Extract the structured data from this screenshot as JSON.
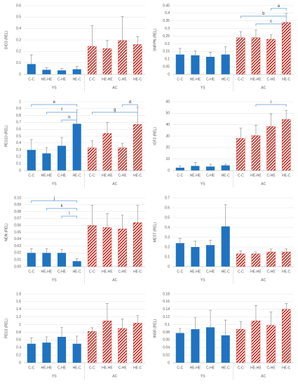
{
  "chart_data": [
    {
      "type": "bar",
      "ylabel": "DIO3 (REL)",
      "ylim": [
        0,
        0.6
      ],
      "yticks": [
        0,
        0.1,
        0.2,
        0.3,
        0.4,
        0.5,
        0.6
      ],
      "grid": true,
      "groups": [
        {
          "label": "YS",
          "color": "#1f73c0",
          "pattern": "solid",
          "categories": [
            "C-C",
            "HE-HE",
            "C-HE",
            "HE-C"
          ],
          "values": [
            0.09,
            0.04,
            0.035,
            0.045
          ],
          "errors": [
            0.08,
            0.02,
            0.015,
            0.025
          ]
        },
        {
          "label": "AC",
          "color": "#c8281e",
          "pattern": "hatch",
          "categories": [
            "C-C",
            "HE-HE",
            "C-HE",
            "HE-C"
          ],
          "values": [
            0.245,
            0.225,
            0.295,
            0.26
          ],
          "errors": [
            0.18,
            0.07,
            0.21,
            0.07
          ]
        }
      ],
      "annotations": []
    },
    {
      "type": "bar",
      "ylabel": "SNRPN (REL)",
      "ylim": [
        0,
        0.45
      ],
      "yticks": [
        0,
        0.05,
        0.1,
        0.15,
        0.2,
        0.25,
        0.3,
        0.35,
        0.4,
        0.45
      ],
      "grid": true,
      "groups": [
        {
          "label": "YS",
          "color": "#1f73c0",
          "pattern": "solid",
          "categories": [
            "C-C",
            "HE-HE",
            "C-HE",
            "HE-C"
          ],
          "values": [
            0.13,
            0.125,
            0.115,
            0.13
          ],
          "errors": [
            0.04,
            0.03,
            0.03,
            0.05
          ]
        },
        {
          "label": "AC",
          "color": "#c8281e",
          "pattern": "hatch",
          "categories": [
            "C-C",
            "HE-HE",
            "C-HE",
            "HE-C"
          ],
          "values": [
            0.24,
            0.24,
            0.23,
            0.34
          ],
          "errors": [
            0.04,
            0.05,
            0.03,
            0.06
          ]
        }
      ],
      "annotations": [
        {
          "label": "a",
          "from": 6,
          "to": 7
        },
        {
          "label": "b",
          "from": 4,
          "to": 7
        },
        {
          "label": "c",
          "from": 5,
          "to": 7
        }
      ]
    },
    {
      "type": "bar",
      "ylabel": "PEG10 (REL)",
      "ylim": [
        0,
        1
      ],
      "yticks": [
        0,
        0.1,
        0.2,
        0.3,
        0.4,
        0.5,
        0.6,
        0.7,
        0.8,
        0.9,
        1
      ],
      "grid": true,
      "groups": [
        {
          "label": "YS",
          "color": "#1f73c0",
          "pattern": "solid",
          "categories": [
            "C-C",
            "HE-HE",
            "C-HE",
            "HE-C"
          ],
          "values": [
            0.3,
            0.25,
            0.36,
            0.68
          ],
          "errors": [
            0.15,
            0.08,
            0.12,
            0.2
          ]
        },
        {
          "label": "AC",
          "color": "#c8281e",
          "pattern": "hatch",
          "categories": [
            "C-C",
            "HE-HE",
            "C-HE",
            "HE-C"
          ],
          "values": [
            0.33,
            0.54,
            0.33,
            0.67
          ],
          "errors": [
            0.1,
            0.16,
            0.06,
            0.25
          ]
        }
      ],
      "annotations": [
        {
          "label": "e",
          "from": 0,
          "to": 3
        },
        {
          "label": "f",
          "from": 1,
          "to": 3
        },
        {
          "label": "h",
          "from": 2,
          "to": 3
        },
        {
          "label": "d",
          "from": 6,
          "to": 7
        },
        {
          "label": "g",
          "from": 4,
          "to": 7
        }
      ]
    },
    {
      "type": "bar",
      "ylabel": "IGF2 (REL)",
      "ylim": [
        0,
        60
      ],
      "yticks": [
        0,
        10,
        20,
        30,
        40,
        50,
        60
      ],
      "grid": true,
      "groups": [
        {
          "label": "YS",
          "color": "#1f73c0",
          "pattern": "solid",
          "categories": [
            "C-C",
            "HE-HE",
            "C-HE",
            "HE-C"
          ],
          "values": [
            2.5,
            4,
            3.5,
            4.5
          ],
          "errors": [
            1.5,
            3,
            2,
            1
          ]
        },
        {
          "label": "AC",
          "color": "#c8281e",
          "pattern": "hatch",
          "categories": [
            "C-C",
            "HE-HE",
            "C-HE",
            "HE-C"
          ],
          "values": [
            28,
            30.5,
            38.5,
            44.5
          ],
          "errors": [
            9,
            9,
            11,
            8
          ]
        }
      ],
      "annotations": [
        {
          "label": "i",
          "from": 5,
          "to": 7
        }
      ]
    },
    {
      "type": "bar",
      "ylabel": "NDN (REL)",
      "ylim": [
        0,
        0.1
      ],
      "yticks": [
        {
          "value": 0,
          "label": "0.00"
        },
        {
          "value": 0.01,
          "label": "0.01"
        },
        {
          "value": 0.02,
          "label": "0.02"
        },
        {
          "value": 0.03,
          "label": "0.03"
        },
        {
          "value": 0.04,
          "label": "0.04"
        },
        {
          "value": 0.05,
          "label": "0.05"
        },
        {
          "value": 0.06,
          "label": "0.06"
        },
        {
          "value": 0.07,
          "label": "0.07"
        },
        {
          "value": 0.08,
          "label": "0.08"
        },
        {
          "value": 0.09,
          "label": "0.09"
        },
        {
          "value": 0.1,
          "label": "0.10"
        }
      ],
      "grid": true,
      "groups": [
        {
          "label": "YS",
          "color": "#1f73c0",
          "pattern": "solid",
          "categories": [
            "C-C",
            "HE-HE",
            "C-HE",
            "HE-C"
          ],
          "values": [
            0.02,
            0.02,
            0.02,
            0.008
          ],
          "errors": [
            0.006,
            0.006,
            0.005,
            0.004
          ]
        },
        {
          "label": "AC",
          "color": "#c8281e",
          "pattern": "hatch",
          "categories": [
            "C-C",
            "HE-HE",
            "C-HE",
            "HE-C"
          ],
          "values": [
            0.06,
            0.057,
            0.055,
            0.064
          ],
          "errors": [
            0.029,
            0.02,
            0.02,
            0.025
          ]
        }
      ],
      "annotations": [
        {
          "label": "j",
          "from": 0,
          "to": 3
        },
        {
          "label": "k",
          "from": 1,
          "to": 3
        },
        {
          "label": "l",
          "from": 2,
          "to": 3
        }
      ]
    },
    {
      "type": "bar",
      "ylabel": "MEST (REL)",
      "ylim": [
        0,
        0.7
      ],
      "yticks": [
        0,
        0.1,
        0.2,
        0.3,
        0.4,
        0.5,
        0.6,
        0.7
      ],
      "grid": true,
      "groups": [
        {
          "label": "YS",
          "color": "#1f73c0",
          "pattern": "solid",
          "categories": [
            "C-C",
            "HE-HE",
            "C-HE",
            "HE-C"
          ],
          "values": [
            0.24,
            0.2,
            0.22,
            0.41
          ],
          "errors": [
            0.05,
            0.06,
            0.05,
            0.22
          ]
        },
        {
          "label": "AC",
          "color": "#c8281e",
          "pattern": "hatch",
          "categories": [
            "C-C",
            "HE-HE",
            "C-HE",
            "HE-C"
          ],
          "values": [
            0.13,
            0.13,
            0.15,
            0.15
          ],
          "errors": [
            0.03,
            0.02,
            0.03,
            0.03
          ]
        }
      ],
      "annotations": []
    },
    {
      "type": "bar",
      "ylabel": "PEG3 (REL)",
      "ylim": [
        0,
        1.8
      ],
      "yticks": [
        0,
        0.2,
        0.4,
        0.6,
        0.8,
        1,
        1.2,
        1.4,
        1.6,
        1.8
      ],
      "grid": true,
      "groups": [
        {
          "label": "YS",
          "color": "#1f73c0",
          "pattern": "solid",
          "categories": [
            "C-C",
            "HE-HE",
            "C-HE",
            "HE-C"
          ],
          "values": [
            0.5,
            0.53,
            0.68,
            0.5
          ],
          "errors": [
            0.15,
            0.15,
            0.25,
            0.2
          ]
        },
        {
          "label": "AC",
          "color": "#c8281e",
          "pattern": "hatch",
          "categories": [
            "C-C",
            "HE-HE",
            "C-HE",
            "HE-C"
          ],
          "values": [
            0.82,
            1.1,
            0.9,
            1.04
          ],
          "errors": [
            0.1,
            0.45,
            0.25,
            0.2
          ]
        }
      ],
      "annotations": []
    },
    {
      "type": "bar",
      "ylabel": "INSR (REL)",
      "ylim": [
        0,
        0.18
      ],
      "yticks": [
        0,
        0.02,
        0.04,
        0.06,
        0.08,
        0.1,
        0.12,
        0.14,
        0.16,
        0.18
      ],
      "grid": true,
      "groups": [
        {
          "label": "YS",
          "color": "#1f73c0",
          "pattern": "solid",
          "categories": [
            "C-C",
            "HE-HE",
            "C-HE",
            "HE-C"
          ],
          "values": [
            0.078,
            0.088,
            0.093,
            0.072
          ],
          "errors": [
            0.012,
            0.03,
            0.045,
            0.04
          ]
        },
        {
          "label": "AC",
          "color": "#c8281e",
          "pattern": "hatch",
          "categories": [
            "C-C",
            "HE-HE",
            "C-HE",
            "HE-C"
          ],
          "values": [
            0.088,
            0.11,
            0.098,
            0.14
          ],
          "errors": [
            0.02,
            0.04,
            0.035,
            0.015
          ]
        }
      ],
      "annotations": []
    }
  ]
}
